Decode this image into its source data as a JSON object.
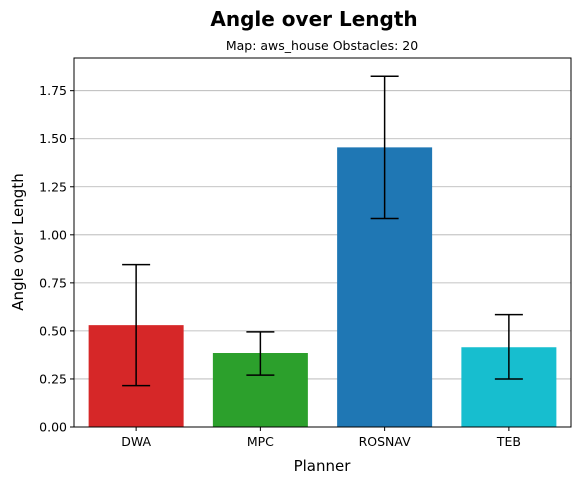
{
  "chart_data": {
    "type": "bar",
    "title": "Angle over Length",
    "subtitle": "Map: aws_house Obstacles: 20",
    "xlabel": "Planner",
    "ylabel": "Angle over Length",
    "categories": [
      "DWA",
      "MPC",
      "ROSNAV",
      "TEB"
    ],
    "values": [
      0.53,
      0.385,
      1.455,
      0.415
    ],
    "errors": [
      {
        "low": 0.215,
        "high": 0.845
      },
      {
        "low": 0.27,
        "high": 0.495
      },
      {
        "low": 1.085,
        "high": 1.825
      },
      {
        "low": 0.25,
        "high": 0.585
      }
    ],
    "colors": [
      "#d62728",
      "#2ca02c",
      "#1f77b4",
      "#17becf"
    ],
    "ylim": [
      0,
      1.92
    ],
    "yticks": [
      "0.00",
      "0.25",
      "0.50",
      "0.75",
      "1.00",
      "1.25",
      "1.50",
      "1.75"
    ],
    "grid": "y"
  }
}
